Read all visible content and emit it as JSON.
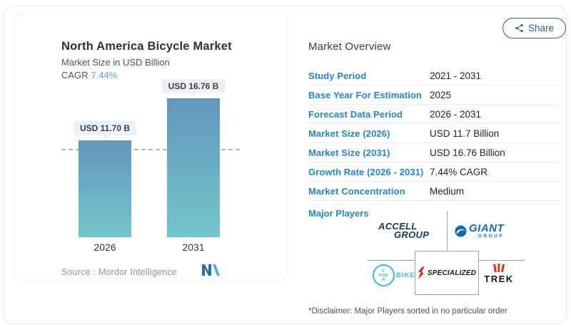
{
  "colors": {
    "accent-blue": "#2585c7",
    "cagr-blue": "#54a6d4",
    "bar-top": "#6396bc",
    "bar-bottom": "#74c5cb",
    "dashed-line": "#a7b8c2",
    "pill-bg": "#edf0f2",
    "share-color": "#3b607a",
    "source-gray": "#8d939e",
    "line-gray": "#9aa0a7",
    "accell-navy": "#16375f",
    "giant-blue": "#1469b3",
    "pon-blue": "#3fb4e5",
    "trek-red": "#dd2a1f",
    "specialized-red": "#e0201c",
    "mordor-blue": "#2d6fad",
    "mordor-teal": "#47b7c7"
  },
  "share": {
    "label": "Share"
  },
  "chart_panel": {
    "cagr_label": "CAGR",
    "source_label": "Source :  ",
    "source_name": "Mordor Intelligence"
  },
  "chart_data": {
    "type": "bar",
    "title": "North America Bicycle Market",
    "ylabel": "Market Size in USD Billion",
    "categories": [
      "2026",
      "2031"
    ],
    "values": [
      11.7,
      16.76
    ],
    "bar_labels": [
      "USD 11.70 B",
      "USD 16.76 B"
    ],
    "cagr": "7.44%",
    "ylim": [
      0,
      18
    ],
    "grid": false,
    "legend": false,
    "reference_line_value": 11.7
  },
  "overview": {
    "title": "Market Overview",
    "rows": [
      {
        "label": "Study Period",
        "value": "2021 - 2031"
      },
      {
        "label": "Base Year For Estimation",
        "value": "2025"
      },
      {
        "label": "Forecast Data Period",
        "value": "2026 - 2031"
      },
      {
        "label": "Market Size (2026)",
        "value": "USD 11.7 Billion"
      },
      {
        "label": "Market Size (2031)",
        "value": "USD 16.76 Billion"
      },
      {
        "label": "Growth Rate (2026 - 2031)",
        "value": "7.44% CAGR"
      },
      {
        "label": "Market Concentration",
        "value": "Medium"
      }
    ],
    "major_players": {
      "label": "Major Players",
      "accell": {
        "line1": "ACCELL",
        "line2": "GROUP"
      },
      "giant": {
        "name": "GIANT",
        "sub": "GROUP"
      },
      "pon": {
        "top": "P",
        "mid": "PON",
        "bottom": "N",
        "right": "BIKE"
      },
      "specialized": {
        "name": "SPECIALIZED"
      },
      "trek": {
        "name": "TREK"
      }
    },
    "disclaimer": "*Disclaimer: Major Players sorted in no particular order"
  }
}
